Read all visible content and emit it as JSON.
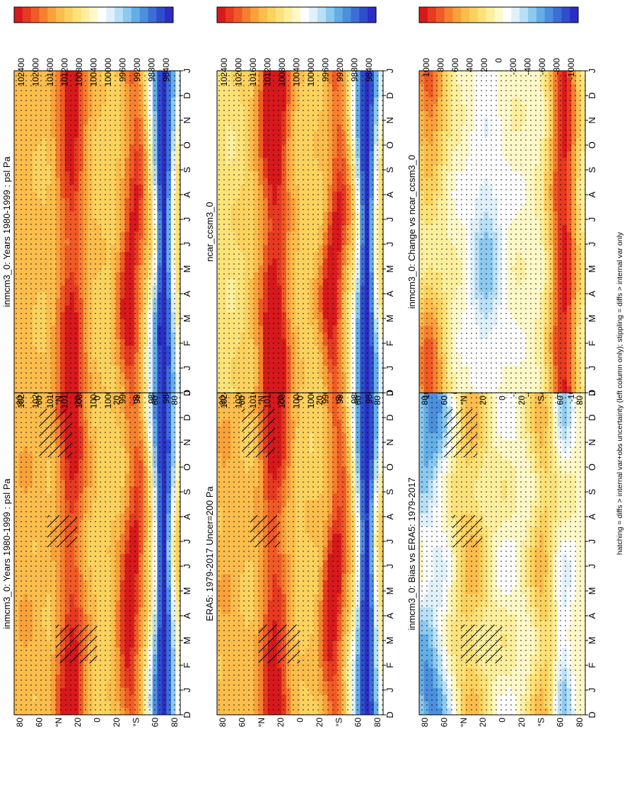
{
  "figure": {
    "footnote": "hatching = diffs > internal var+obs uncertainty (left column only); stippling = diffs > internal var only",
    "colors": {
      "fill": [
        "#d7191c",
        "#e63a21",
        "#f05a26",
        "#f5802f",
        "#f9a23c",
        "#fbbd4c",
        "#fcd25f",
        "#fde27a",
        "#feef9e",
        "#fff8c9",
        "#ffffff",
        "#e0f1fb",
        "#b8e0f6",
        "#8cc9ef",
        "#64aee6",
        "#4c8fdd",
        "#3b6fd5",
        "#2f4ecc",
        "#2a2fc2"
      ],
      "background": "#ffffff"
    }
  },
  "chart_data": [
    {
      "type": "heatmap",
      "title": "inmcm3_0: Years 1980-1999 : psl Pa",
      "x_ticks": [
        "D",
        "J",
        "F",
        "M",
        "A",
        "M",
        "J",
        "J",
        "A",
        "S",
        "O",
        "N",
        "D",
        "J"
      ],
      "y_ticks": [
        "80",
        "60",
        "°N",
        "20",
        "0",
        "20",
        "°S",
        "60",
        "80"
      ],
      "colorbar": [
        "102400",
        "102000",
        "101600",
        "101200",
        "100800",
        "100400",
        "100000",
        "99600",
        "99200",
        "98800",
        "98400"
      ],
      "vmin": 98400,
      "vmax": 102400,
      "field": "clim",
      "seasonal": 1.0,
      "seed": 1,
      "hatch": true
    },
    {
      "type": "heatmap",
      "title": "inmcm3_0: Years 1980-1999 : psl Pa",
      "x_ticks": [
        "D",
        "J",
        "F",
        "M",
        "A",
        "M",
        "J",
        "J",
        "A",
        "S",
        "O",
        "N",
        "D",
        "J"
      ],
      "y_ticks": [
        "80",
        "60",
        "°N",
        "20",
        "0",
        "20",
        "°S",
        "60",
        "80"
      ],
      "colorbar": [
        "102400",
        "102000",
        "101600",
        "101200",
        "100800",
        "100400",
        "100000",
        "99600",
        "99200",
        "98800",
        "98400"
      ],
      "vmin": 98400,
      "vmax": 102400,
      "field": "clim",
      "seasonal": 0.8,
      "seed": 2,
      "hatch": false
    },
    {
      "type": "heatmap",
      "title": "ERA5: 1979-2017 Uncer=200 Pa",
      "x_ticks": [
        "D",
        "J",
        "F",
        "M",
        "A",
        "M",
        "J",
        "J",
        "A",
        "S",
        "O",
        "N",
        "D",
        "J"
      ],
      "y_ticks": [
        "80",
        "60",
        "°N",
        "20",
        "0",
        "20",
        "°S",
        "60",
        "80"
      ],
      "colorbar": [
        "102400",
        "102000",
        "101600",
        "101200",
        "100800",
        "100400",
        "100000",
        "99600",
        "99200",
        "98800",
        "98400"
      ],
      "vmin": 98400,
      "vmax": 102400,
      "field": "obs",
      "seasonal": 1.0,
      "seed": 3,
      "hatch": true
    },
    {
      "type": "heatmap",
      "title": "ncar_ccsm3_0",
      "x_ticks": [
        "D",
        "J",
        "F",
        "M",
        "A",
        "M",
        "J",
        "J",
        "A",
        "S",
        "O",
        "N",
        "D",
        "J"
      ],
      "y_ticks": [
        "80",
        "60",
        "°N",
        "20",
        "0",
        "20",
        "°S",
        "60",
        "80"
      ],
      "colorbar": [
        "102400",
        "102000",
        "101600",
        "101200",
        "100800",
        "100400",
        "100000",
        "99600",
        "99200",
        "98800",
        "98400"
      ],
      "vmin": 98400,
      "vmax": 102400,
      "field": "ncar",
      "seasonal": 0.9,
      "seed": 4,
      "hatch": false
    },
    {
      "type": "heatmap",
      "title": "inmcm3_0: Bias vs ERA5: 1979-2017",
      "x_ticks": [
        "D",
        "J",
        "F",
        "M",
        "A",
        "M",
        "J",
        "J",
        "A",
        "S",
        "O",
        "N",
        "D",
        "J"
      ],
      "y_ticks": [
        "80",
        "60",
        "°N",
        "20",
        "0",
        "20",
        "°S",
        "60",
        "80"
      ],
      "colorbar": [
        "1000",
        "800",
        "600",
        "400",
        "200",
        "0",
        "-200",
        "-400",
        "-600",
        "-800",
        "-1000"
      ],
      "vmin": -1000,
      "vmax": 1000,
      "field": "bias",
      "seasonal": 1.0,
      "seed": 5,
      "hatch": true
    },
    {
      "type": "heatmap",
      "title": "inmcm3_0: Change vs ncar_ccsm3_0",
      "x_ticks": [
        "D",
        "J",
        "F",
        "M",
        "A",
        "M",
        "J",
        "J",
        "A",
        "S",
        "O",
        "N",
        "D",
        "J"
      ],
      "y_ticks": [
        "80",
        "60",
        "°N",
        "20",
        "0",
        "20",
        "°S",
        "60",
        "80"
      ],
      "colorbar": [
        "1000",
        "800",
        "600",
        "400",
        "200",
        "0",
        "-200",
        "-400",
        "-600",
        "-800",
        "-1000"
      ],
      "vmin": -1000,
      "vmax": 1000,
      "field": "change",
      "seasonal": 1.0,
      "seed": 6,
      "hatch": false
    }
  ]
}
